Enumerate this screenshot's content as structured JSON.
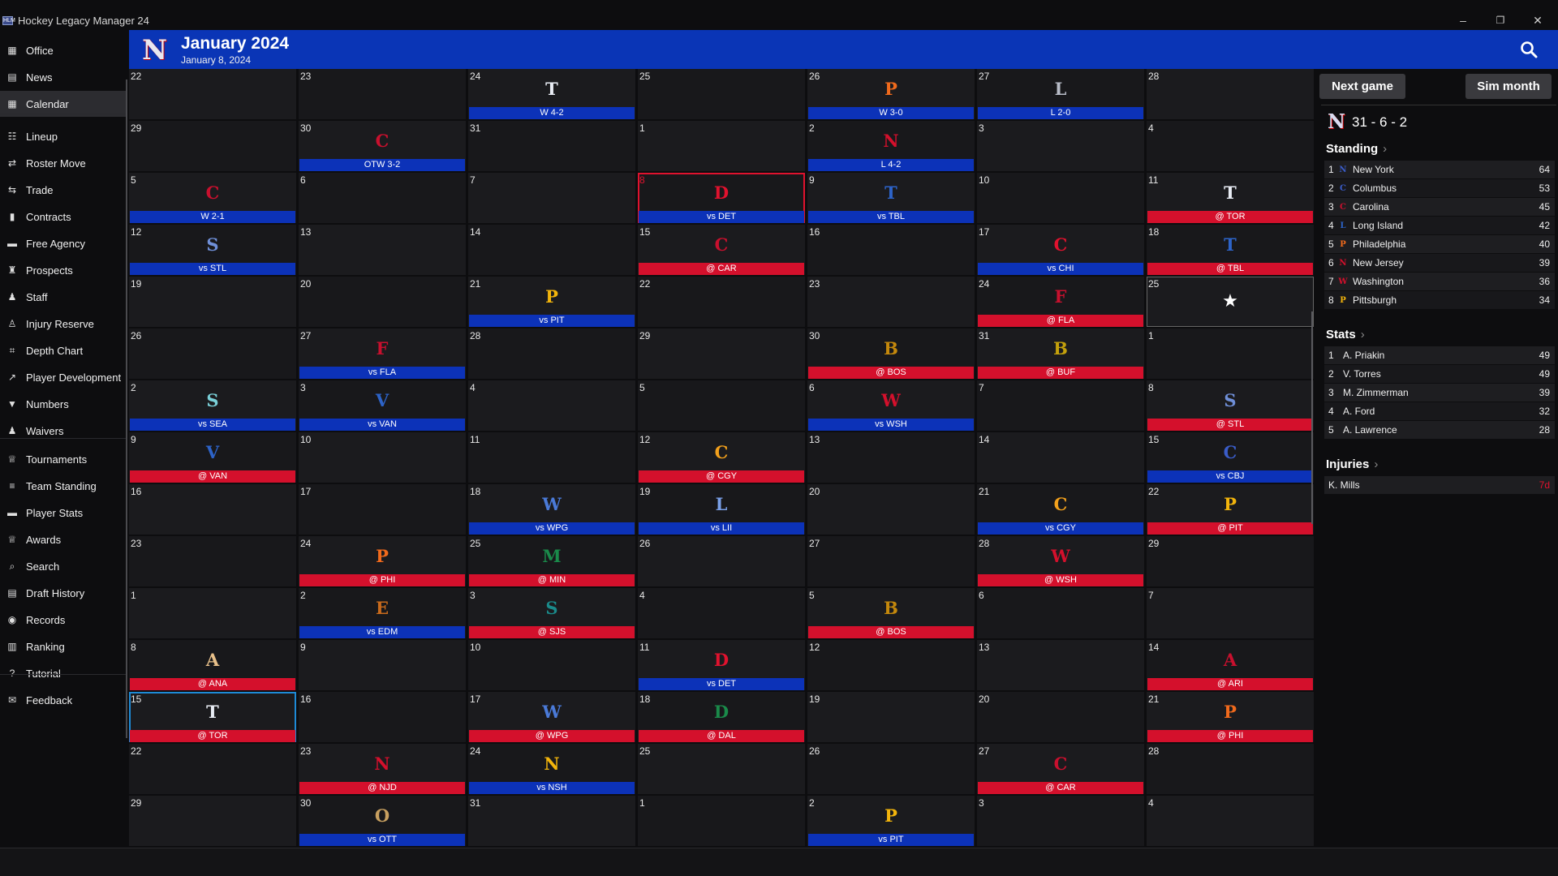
{
  "window": {
    "title": "Hockey Legacy Manager 24",
    "minimize": "–",
    "maximize": "❐",
    "close": "✕"
  },
  "sidebar": {
    "items": [
      {
        "label": "Office",
        "icon": "▦",
        "icon_name": "office-icon",
        "active": false
      },
      {
        "label": "News",
        "icon": "▤",
        "icon_name": "news-icon",
        "active": false
      },
      {
        "label": "Calendar",
        "icon": "▦",
        "icon_name": "calendar-icon",
        "active": true
      },
      {
        "label": "Lineup",
        "icon": "☷",
        "icon_name": "users-icon",
        "active": false
      },
      {
        "label": "Roster Move",
        "icon": "⇄",
        "icon_name": "exchange-icon",
        "active": false
      },
      {
        "label": "Trade",
        "icon": "⇆",
        "icon_name": "trade-icon",
        "active": false
      },
      {
        "label": "Contracts",
        "icon": "▮",
        "icon_name": "contract-icon",
        "active": false
      },
      {
        "label": "Free Agency",
        "icon": "▬",
        "icon_name": "free-agency-icon",
        "active": false
      },
      {
        "label": "Prospects",
        "icon": "♜",
        "icon_name": "binoculars-icon",
        "active": false
      },
      {
        "label": "Staff",
        "icon": "♟",
        "icon_name": "staff-icon",
        "active": false
      },
      {
        "label": "Injury Reserve",
        "icon": "♙",
        "icon_name": "injury-icon",
        "active": false
      },
      {
        "label": "Depth Chart",
        "icon": "⌗",
        "icon_name": "depth-chart-icon",
        "active": false
      },
      {
        "label": "Player Development",
        "icon": "↗",
        "icon_name": "development-icon",
        "active": false
      },
      {
        "label": "Numbers",
        "icon": "▼",
        "icon_name": "jersey-icon",
        "active": false
      },
      {
        "label": "Waivers",
        "icon": "♟",
        "icon_name": "waivers-icon",
        "active": false
      },
      {
        "label": "Tournaments",
        "icon": "♕",
        "icon_name": "trophy-icon",
        "active": false
      },
      {
        "label": "Team Standing",
        "icon": "≡",
        "icon_name": "list-icon",
        "active": false
      },
      {
        "label": "Player Stats",
        "icon": "▬",
        "icon_name": "player-stats-icon",
        "active": false
      },
      {
        "label": "Awards",
        "icon": "♕",
        "icon_name": "award-icon",
        "active": false
      },
      {
        "label": "Search",
        "icon": "⌕",
        "icon_name": "search-icon",
        "active": false
      },
      {
        "label": "Draft History",
        "icon": "▤",
        "icon_name": "draft-icon",
        "active": false
      },
      {
        "label": "Records",
        "icon": "◉",
        "icon_name": "records-icon",
        "active": false
      },
      {
        "label": "Ranking",
        "icon": "▥",
        "icon_name": "ranking-icon",
        "active": false
      },
      {
        "label": "Tutorial",
        "icon": "?",
        "icon_name": "tutorial-icon",
        "active": false
      },
      {
        "label": "Feedback",
        "icon": "✉",
        "icon_name": "feedback-icon",
        "active": false
      }
    ]
  },
  "header": {
    "logo_letter": "N",
    "month_title": "January 2024",
    "current_date": "January 8, 2024"
  },
  "calendar": {
    "days": [
      [
        "22",
        "",
        "",
        ""
      ],
      [
        "23",
        "",
        "",
        ""
      ],
      [
        "24",
        "T",
        "W 4-2",
        "home"
      ],
      [
        "25",
        "",
        "",
        ""
      ],
      [
        "26",
        "P",
        "W 3-0",
        "home"
      ],
      [
        "27",
        "L",
        "L 2-0",
        "home"
      ],
      [
        "28",
        "",
        "",
        ""
      ],
      [
        "29",
        "",
        "",
        ""
      ],
      [
        "30",
        "C",
        "OTW 3-2",
        "home"
      ],
      [
        "31",
        "",
        "",
        ""
      ],
      [
        "1",
        "",
        "",
        ""
      ],
      [
        "2",
        "N",
        "L 4-2",
        "home"
      ],
      [
        "3",
        "",
        "",
        ""
      ],
      [
        "4",
        "",
        "",
        ""
      ],
      [
        "5",
        "C",
        "W 2-1",
        "home"
      ],
      [
        "6",
        "",
        "",
        ""
      ],
      [
        "7",
        "",
        "",
        ""
      ],
      [
        "8",
        "D",
        "vs DET",
        "home"
      ],
      [
        "9",
        "T",
        "vs TBL",
        "home"
      ],
      [
        "10",
        "",
        "",
        ""
      ],
      [
        "11",
        "T",
        "@ TOR",
        "away"
      ],
      [
        "12",
        "S",
        "vs STL",
        "home"
      ],
      [
        "13",
        "",
        "",
        ""
      ],
      [
        "14",
        "",
        "",
        ""
      ],
      [
        "15",
        "C",
        "@ CAR",
        "away"
      ],
      [
        "16",
        "",
        "",
        ""
      ],
      [
        "17",
        "C",
        "vs CHI",
        "home"
      ],
      [
        "18",
        "T",
        "@ TBL",
        "away"
      ],
      [
        "19",
        "",
        "",
        ""
      ],
      [
        "20",
        "",
        "",
        ""
      ],
      [
        "21",
        "P",
        "vs PIT",
        "home"
      ],
      [
        "22",
        "",
        "",
        ""
      ],
      [
        "23",
        "",
        "",
        ""
      ],
      [
        "24",
        "F",
        "@ FLA",
        "away"
      ],
      [
        "25",
        "★",
        "",
        ""
      ],
      [
        "26",
        "",
        "",
        ""
      ],
      [
        "27",
        "F",
        "vs FLA",
        "home"
      ],
      [
        "28",
        "",
        "",
        ""
      ],
      [
        "29",
        "",
        "",
        ""
      ],
      [
        "30",
        "B",
        "@ BOS",
        "away"
      ],
      [
        "31",
        "B",
        "@ BUF",
        "away"
      ],
      [
        "1",
        "",
        "",
        ""
      ],
      [
        "2",
        "S",
        "vs SEA",
        "home"
      ],
      [
        "3",
        "V",
        "vs VAN",
        "home"
      ],
      [
        "4",
        "",
        "",
        ""
      ],
      [
        "5",
        "",
        "",
        ""
      ],
      [
        "6",
        "W",
        "vs WSH",
        "home"
      ],
      [
        "7",
        "",
        "",
        ""
      ],
      [
        "8",
        "S",
        "@ STL",
        "away"
      ],
      [
        "9",
        "V",
        "@ VAN",
        "away"
      ],
      [
        "10",
        "",
        "",
        ""
      ],
      [
        "11",
        "",
        "",
        ""
      ],
      [
        "12",
        "C",
        "@ CGY",
        "away"
      ],
      [
        "13",
        "",
        "",
        ""
      ],
      [
        "14",
        "",
        "",
        ""
      ],
      [
        "15",
        "C",
        "vs CBJ",
        "home"
      ],
      [
        "16",
        "",
        "",
        ""
      ],
      [
        "17",
        "",
        "",
        ""
      ],
      [
        "18",
        "W",
        "vs WPG",
        "home"
      ],
      [
        "19",
        "L",
        "vs LII",
        "home"
      ],
      [
        "20",
        "",
        "",
        ""
      ],
      [
        "21",
        "C",
        "vs CGY",
        "home"
      ],
      [
        "22",
        "P",
        "@ PIT",
        "away"
      ],
      [
        "23",
        "",
        "",
        ""
      ],
      [
        "24",
        "P",
        "@ PHI",
        "away"
      ],
      [
        "25",
        "M",
        "@ MIN",
        "away"
      ],
      [
        "26",
        "",
        "",
        ""
      ],
      [
        "27",
        "",
        "",
        ""
      ],
      [
        "28",
        "W",
        "@ WSH",
        "away"
      ],
      [
        "29",
        "",
        "",
        ""
      ],
      [
        "1",
        "",
        "",
        ""
      ],
      [
        "2",
        "E",
        "vs EDM",
        "home"
      ],
      [
        "3",
        "S",
        "@ SJS",
        "away"
      ],
      [
        "4",
        "",
        "",
        ""
      ],
      [
        "5",
        "B",
        "@ BOS",
        "away"
      ],
      [
        "6",
        "",
        "",
        ""
      ],
      [
        "7",
        "",
        "",
        ""
      ],
      [
        "8",
        "A",
        "@ ANA",
        "away"
      ],
      [
        "9",
        "",
        "",
        ""
      ],
      [
        "10",
        "",
        "",
        ""
      ],
      [
        "11",
        "D",
        "vs DET",
        "home"
      ],
      [
        "12",
        "",
        "",
        ""
      ],
      [
        "13",
        "",
        "",
        ""
      ],
      [
        "14",
        "A",
        "@ ARI",
        "away"
      ],
      [
        "15",
        "T",
        "@ TOR",
        "away"
      ],
      [
        "16",
        "",
        "",
        ""
      ],
      [
        "17",
        "W",
        "@ WPG",
        "away"
      ],
      [
        "18",
        "D",
        "@ DAL",
        "away"
      ],
      [
        "19",
        "",
        "",
        ""
      ],
      [
        "20",
        "",
        "",
        ""
      ],
      [
        "21",
        "P",
        "@ PHI",
        "away"
      ],
      [
        "22",
        "",
        "",
        ""
      ],
      [
        "23",
        "N",
        "@ NJD",
        "away"
      ],
      [
        "24",
        "N",
        "vs NSH",
        "home"
      ],
      [
        "25",
        "",
        "",
        ""
      ],
      [
        "26",
        "",
        "",
        ""
      ],
      [
        "27",
        "C",
        "@ CAR",
        "away"
      ],
      [
        "28",
        "",
        "",
        ""
      ],
      [
        "29",
        "",
        "",
        ""
      ],
      [
        "30",
        "O",
        "vs OTT",
        "home"
      ],
      [
        "31",
        "",
        "",
        ""
      ],
      [
        "1",
        "",
        "",
        ""
      ],
      [
        "2",
        "P",
        "vs PIT",
        "home"
      ],
      [
        "3",
        "",
        "",
        ""
      ],
      [
        "4",
        "",
        "",
        ""
      ]
    ],
    "letter_colors": [
      "",
      "",
      "#e8ecf4",
      "",
      "#f06a1c",
      "#b8bcc8",
      "",
      "",
      "#c8102e",
      "",
      "",
      "#d4102c",
      "",
      "",
      "#c8102e",
      "",
      "",
      "#e0122e",
      "#2d63c8",
      "",
      "#e8ecf4",
      "#6f8fd8",
      "",
      "",
      "#c8102e",
      "",
      "#e0122e",
      "#2d63c8",
      "",
      "",
      "#f2b40c",
      "",
      "",
      "#c8102e",
      "",
      "",
      "#c8102e",
      "",
      "",
      "#c4880c",
      "#c4a10c",
      "",
      "#7ad0d8",
      "#2d63c8",
      "",
      "",
      "#d4102c",
      "",
      "#6f8fd8",
      "#2d63c8",
      "",
      "",
      "#f2a01c",
      "",
      "",
      "#3a5cc8",
      "",
      "",
      "#4a7ad8",
      "#7aa0e8",
      "",
      "#f2a01c",
      "#f2b40c",
      "",
      "#f06a1c",
      "#1a8a4a",
      "",
      "",
      "#d4102c",
      "",
      "",
      "#c86a1c",
      "#1a8a8a",
      "",
      "#c4880c",
      "",
      "",
      "#e8c08a",
      "",
      "",
      "#e0122e",
      "",
      "",
      "#c8102e",
      "#e8ecf4",
      "",
      "#4a7ad8",
      "#1a8a4a",
      "",
      "",
      "#f06a1c",
      "",
      "#d4102c",
      "#f2b40c",
      "",
      "",
      "#c8102e",
      "",
      "",
      "#c8a060",
      "",
      "",
      "#f2b40c",
      "",
      ""
    ]
  },
  "panel": {
    "next_game": "Next game",
    "sim_month": "Sim month",
    "team_record": "31 - 6 - 2",
    "standing": {
      "title": "Standing",
      "chevron": "›",
      "rows": [
        {
          "rank": "1",
          "logo": "N",
          "name": "New York",
          "value": "64"
        },
        {
          "rank": "2",
          "logo": "C",
          "name": "Columbus",
          "value": "53"
        },
        {
          "rank": "3",
          "logo": "C",
          "name": "Carolina",
          "value": "45"
        },
        {
          "rank": "4",
          "logo": "L",
          "name": "Long Island",
          "value": "42"
        },
        {
          "rank": "5",
          "logo": "P",
          "name": "Philadelphia",
          "value": "40"
        },
        {
          "rank": "6",
          "logo": "N",
          "name": "New Jersey",
          "value": "39"
        },
        {
          "rank": "7",
          "logo": "W",
          "name": "Washington",
          "value": "36"
        },
        {
          "rank": "8",
          "logo": "P",
          "name": "Pittsburgh",
          "value": "34"
        }
      ],
      "logo_colors": [
        "#3a5cc8",
        "#3a5cc8",
        "#c8102e",
        "#2d63c8",
        "#f06a1c",
        "#d4102c",
        "#d4102c",
        "#f2b40c"
      ]
    },
    "stats": {
      "title": "Stats",
      "chevron": "›",
      "rows": [
        {
          "rank": "1",
          "name": "A. Priakin",
          "value": "49"
        },
        {
          "rank": "2",
          "name": "V. Torres",
          "value": "49"
        },
        {
          "rank": "3",
          "name": "M. Zimmerman",
          "value": "39"
        },
        {
          "rank": "4",
          "name": "A. Ford",
          "value": "32"
        },
        {
          "rank": "5",
          "name": "A. Lawrence",
          "value": "28"
        }
      ]
    },
    "injuries": {
      "title": "Injuries",
      "chevron": "›",
      "rows": [
        {
          "name": "K. Mills",
          "value": "7d"
        }
      ]
    }
  }
}
